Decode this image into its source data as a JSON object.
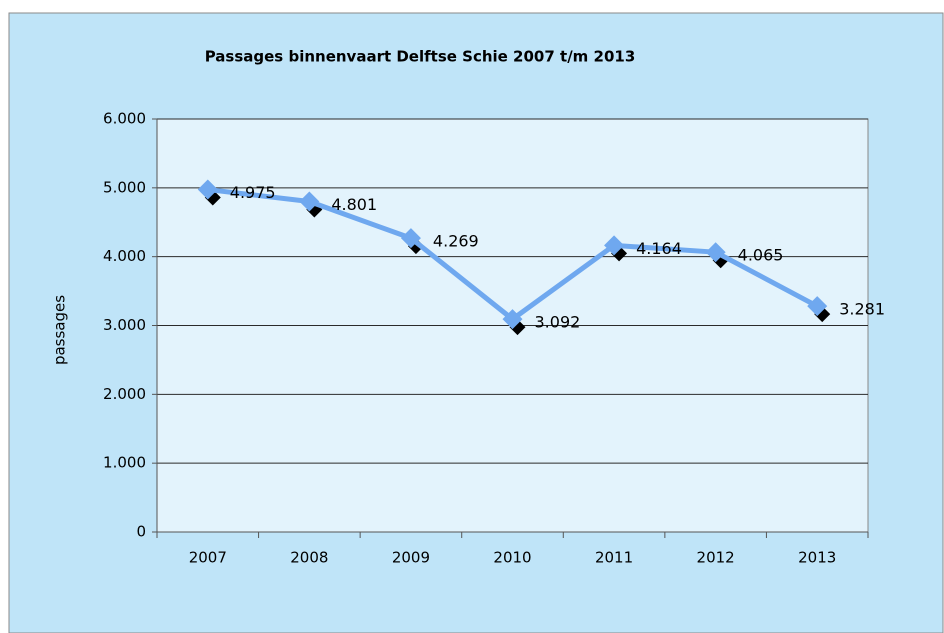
{
  "chart_data": {
    "type": "line",
    "title": "Passages  binnenvaart Delftse  Schie 2007 t/m 2013",
    "y_label": "passages",
    "categories": [
      "2007",
      "2008",
      "2009",
      "2010",
      "2011",
      "2012",
      "2013"
    ],
    "series": [
      {
        "name": "passages",
        "color": "#6fa8ef",
        "values": [
          4975,
          4801,
          4269,
          3092,
          4164,
          4065,
          3281
        ],
        "value_labels": [
          "4.975",
          "4.801",
          "4.269",
          "3.092",
          "4.164",
          "4.065",
          "3.281"
        ]
      }
    ],
    "ylim": [
      0,
      6000
    ],
    "yticks": [
      {
        "value": 0,
        "label": "0"
      },
      {
        "value": 1000,
        "label": "1.000"
      },
      {
        "value": 2000,
        "label": "2.000"
      },
      {
        "value": 3000,
        "label": "3.000"
      },
      {
        "value": 4000,
        "label": "4.000"
      },
      {
        "value": 5000,
        "label": "5.000"
      },
      {
        "value": 6000,
        "label": "6.000"
      }
    ],
    "grid": true
  }
}
